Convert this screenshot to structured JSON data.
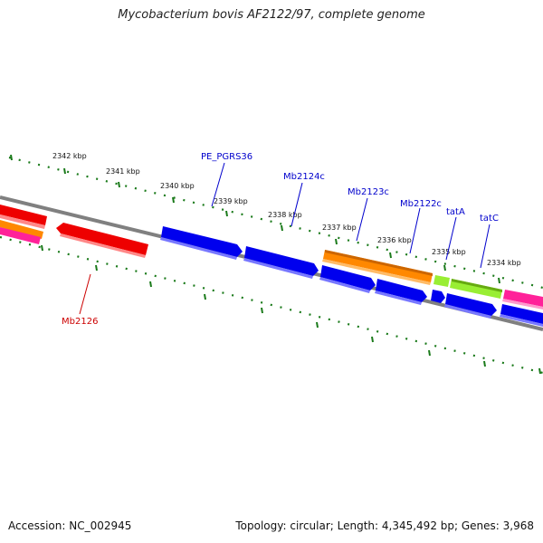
{
  "title": "Mycobacterium bovis AF2122/97, complete genome",
  "footer": {
    "accession": "Accession: NC_002945",
    "summary": "Topology: circular; Length: 4,345,492 bp; Genes: 3,968"
  },
  "kbp_labels": [
    "2342 kbp",
    "2341 kbp",
    "2340 kbp",
    "2339 kbp",
    "2338 kbp",
    "2337 kbp",
    "2336 kbp",
    "2335 kbp",
    "2334 kbp"
  ],
  "gene_labels": [
    {
      "name": "PE_PGRS36",
      "color": "#0000cc"
    },
    {
      "name": "Mb2124c",
      "color": "#0000cc"
    },
    {
      "name": "Mb2123c",
      "color": "#0000cc"
    },
    {
      "name": "Mb2122c",
      "color": "#0000cc"
    },
    {
      "name": "tatA",
      "color": "#0000cc"
    },
    {
      "name": "tatC",
      "color": "#0000cc"
    },
    {
      "name": "Mb2126",
      "color": "#cc0000"
    }
  ],
  "colors": {
    "backbone": "#808080",
    "tick": "#1a7a1a",
    "gene_blue": "#0000ee",
    "gene_red": "#ee0000",
    "gene_orange": "#ff8800",
    "gene_green": "#99ee33",
    "gene_pink": "#ff2299"
  }
}
